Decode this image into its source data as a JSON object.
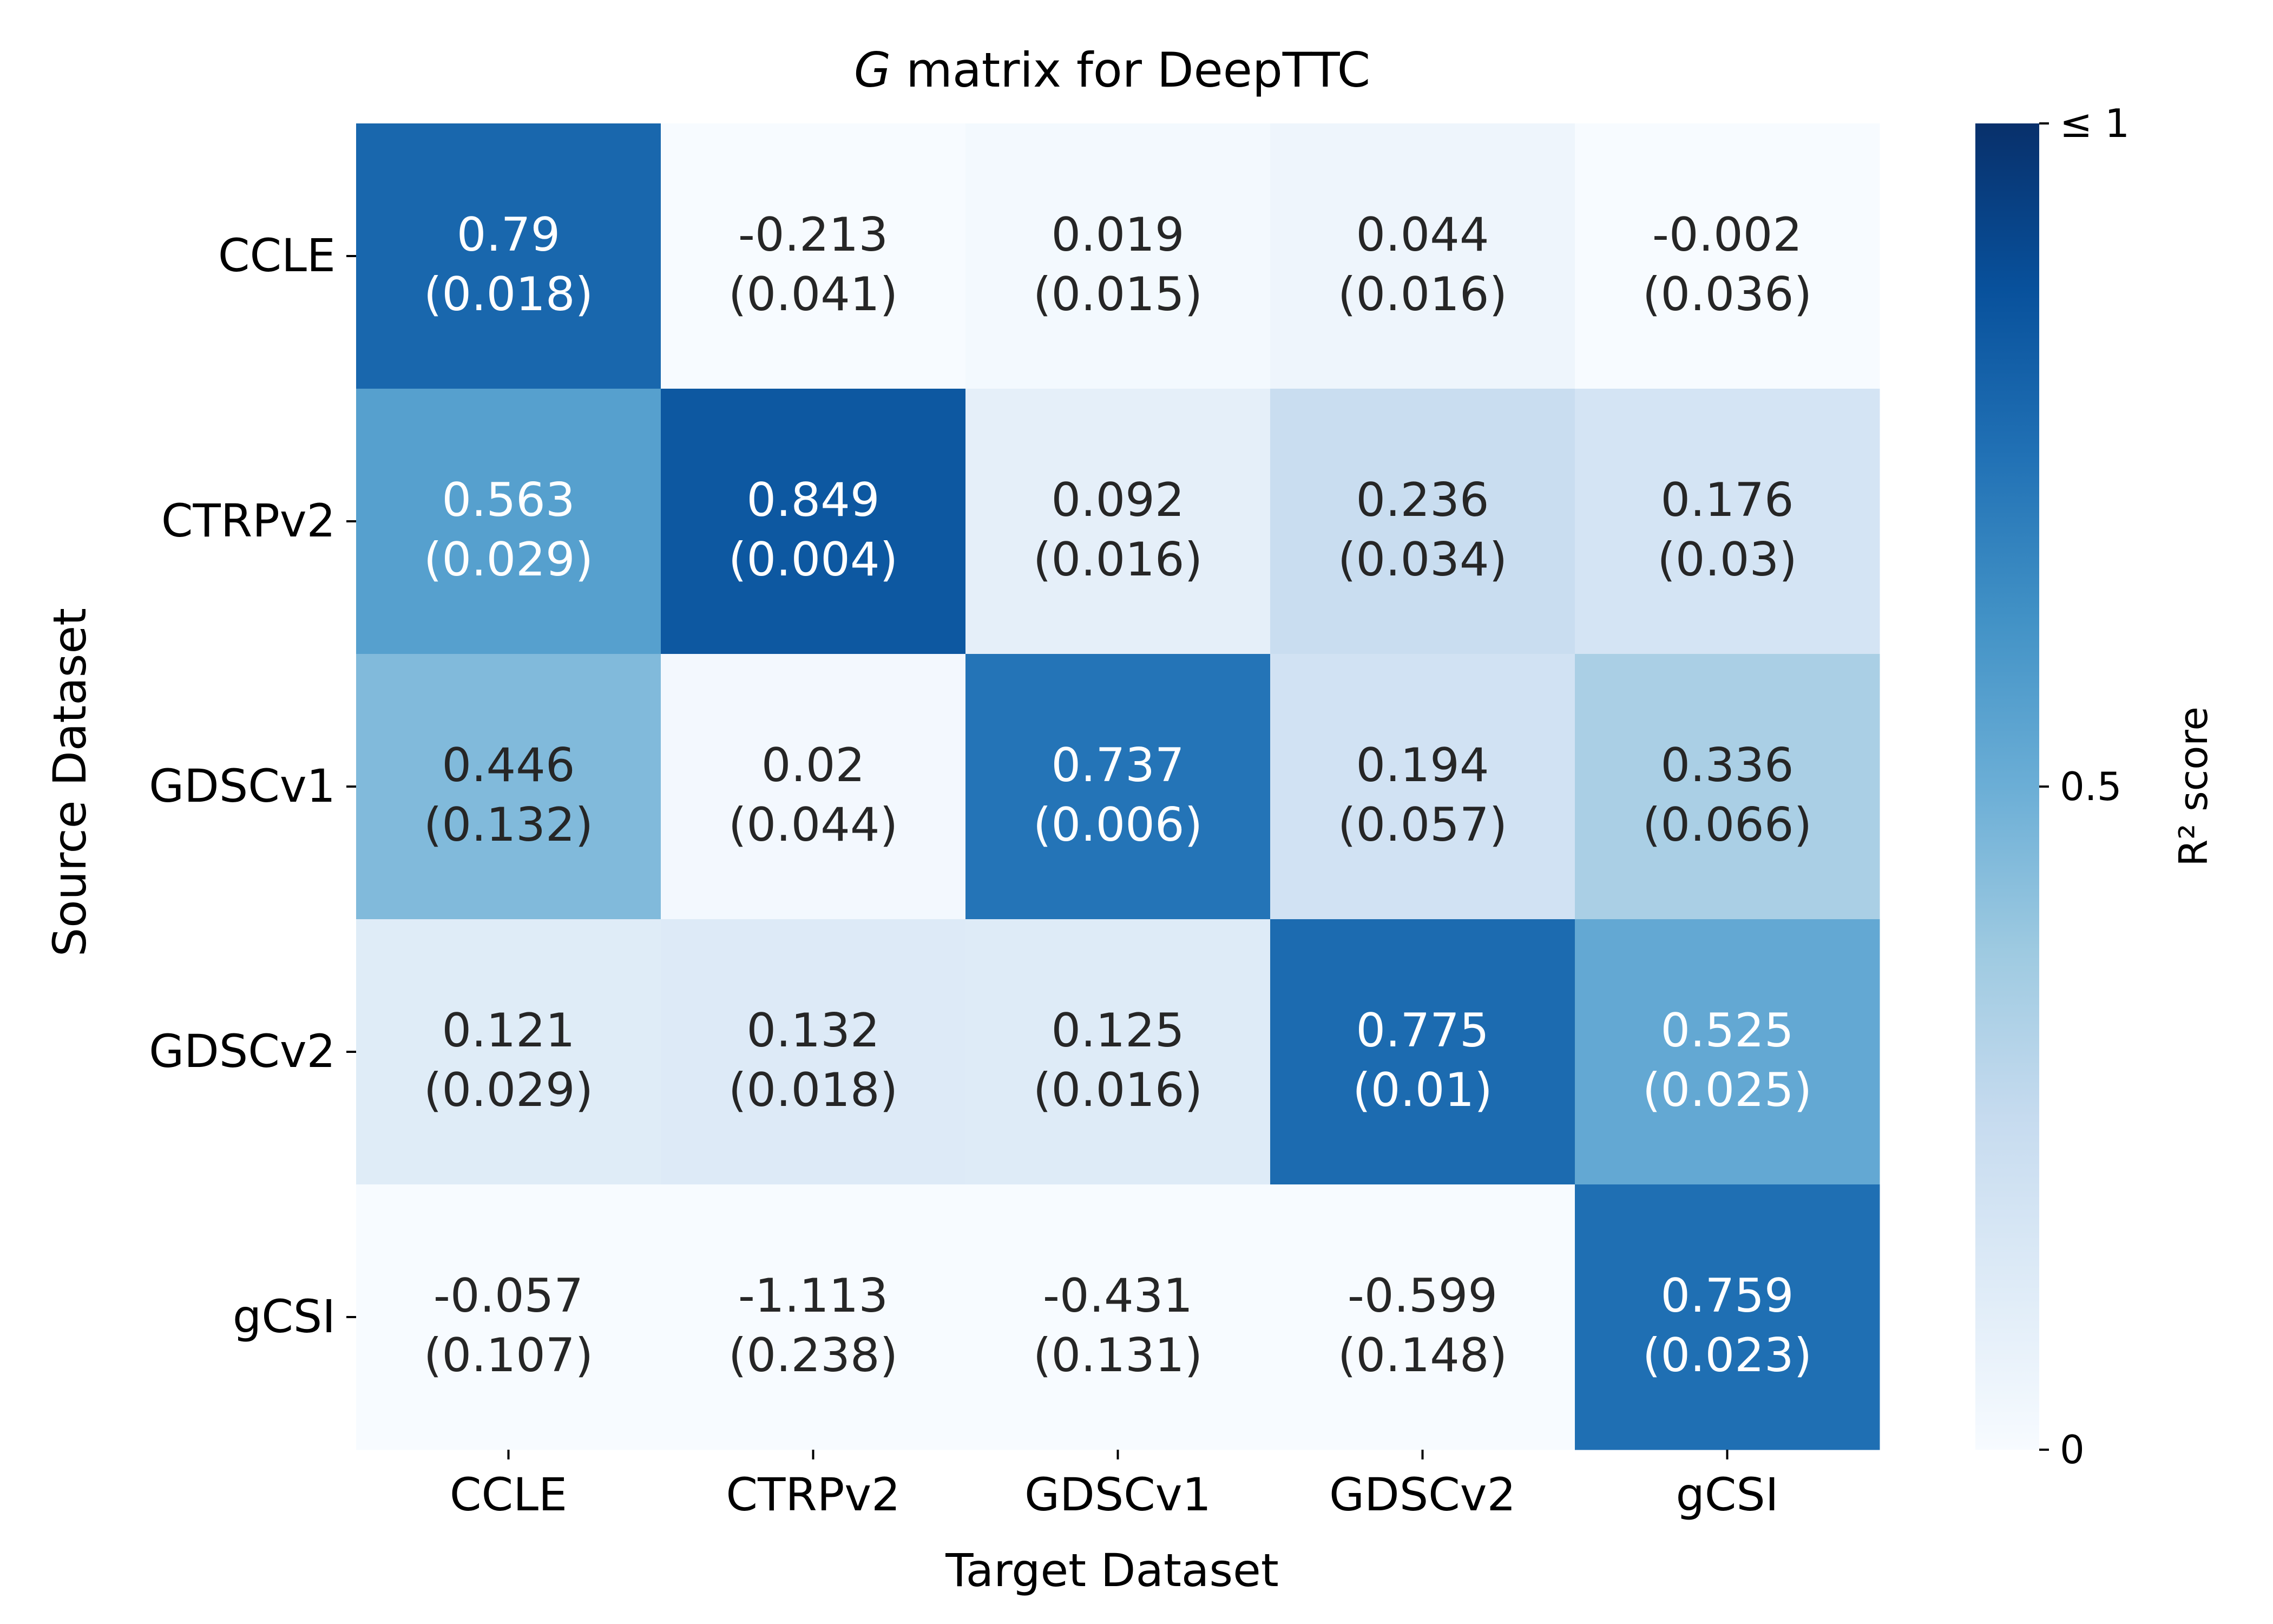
{
  "chart_data": {
    "type": "heatmap",
    "title_italic": "G",
    "title_rest": " matrix for DeepTTC",
    "xlabel": "Target Dataset",
    "ylabel": "Source Dataset",
    "x_categories": [
      "CCLE",
      "CTRPv2",
      "GDSCv1",
      "GDSCv2",
      "gCSI"
    ],
    "y_categories": [
      "CCLE",
      "CTRPv2",
      "GDSCv1",
      "GDSCv2",
      "gCSI"
    ],
    "values": [
      [
        0.79,
        -0.213,
        0.019,
        0.044,
        -0.002
      ],
      [
        0.563,
        0.849,
        0.092,
        0.236,
        0.176
      ],
      [
        0.446,
        0.02,
        0.737,
        0.194,
        0.336
      ],
      [
        0.121,
        0.132,
        0.125,
        0.775,
        0.525
      ],
      [
        -0.057,
        -1.113,
        -0.431,
        -0.599,
        0.759
      ]
    ],
    "errors": [
      [
        "0.018",
        "0.041",
        "0.015",
        "0.016",
        "0.036"
      ],
      [
        "0.029",
        "0.004",
        "0.016",
        "0.034",
        "0.03"
      ],
      [
        "0.132",
        "0.044",
        "0.006",
        "0.057",
        "0.066"
      ],
      [
        "0.029",
        "0.018",
        "0.016",
        "0.01",
        "0.025"
      ],
      [
        "0.107",
        "0.238",
        "0.131",
        "0.148",
        "0.023"
      ]
    ],
    "colorbar": {
      "label": "R² score",
      "min": 0,
      "max": 1,
      "ticks": [
        {
          "value": 0,
          "label": "0"
        },
        {
          "value": 0.5,
          "label": "0.5"
        },
        {
          "value": 1,
          "label": "≤ 1"
        }
      ],
      "colormap": "Blues"
    },
    "grid": false,
    "legend": "colorbar-right"
  }
}
